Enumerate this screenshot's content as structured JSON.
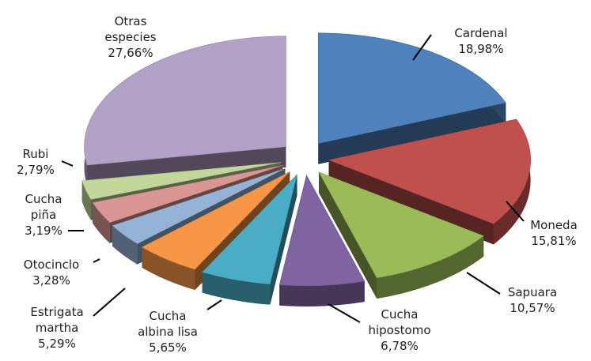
{
  "chart_data": {
    "type": "pie",
    "categories": [
      "Cardenal",
      "Moneda",
      "Sapuara",
      "Cucha hipostomo",
      "Cucha albina lisa",
      "Estrigata martha",
      "Otocinclo",
      "Cucha piña",
      "Rubi",
      "Otras especies"
    ],
    "values": [
      18.98,
      15.81,
      10.57,
      6.78,
      5.65,
      5.29,
      3.28,
      3.19,
      2.79,
      27.66
    ],
    "value_labels": [
      "18,98%",
      "15,81%",
      "10,57%",
      "6,78%",
      "5,65%",
      "5,29%",
      "3,28%",
      "3,19%",
      "2,79%",
      "27,66%"
    ],
    "colors": [
      "#4f81bd",
      "#c0504d",
      "#9bbb59",
      "#8064a2",
      "#4bacc6",
      "#f79646",
      "#95b3d7",
      "#d99694",
      "#c3d69b",
      "#b3a2c7"
    ]
  }
}
